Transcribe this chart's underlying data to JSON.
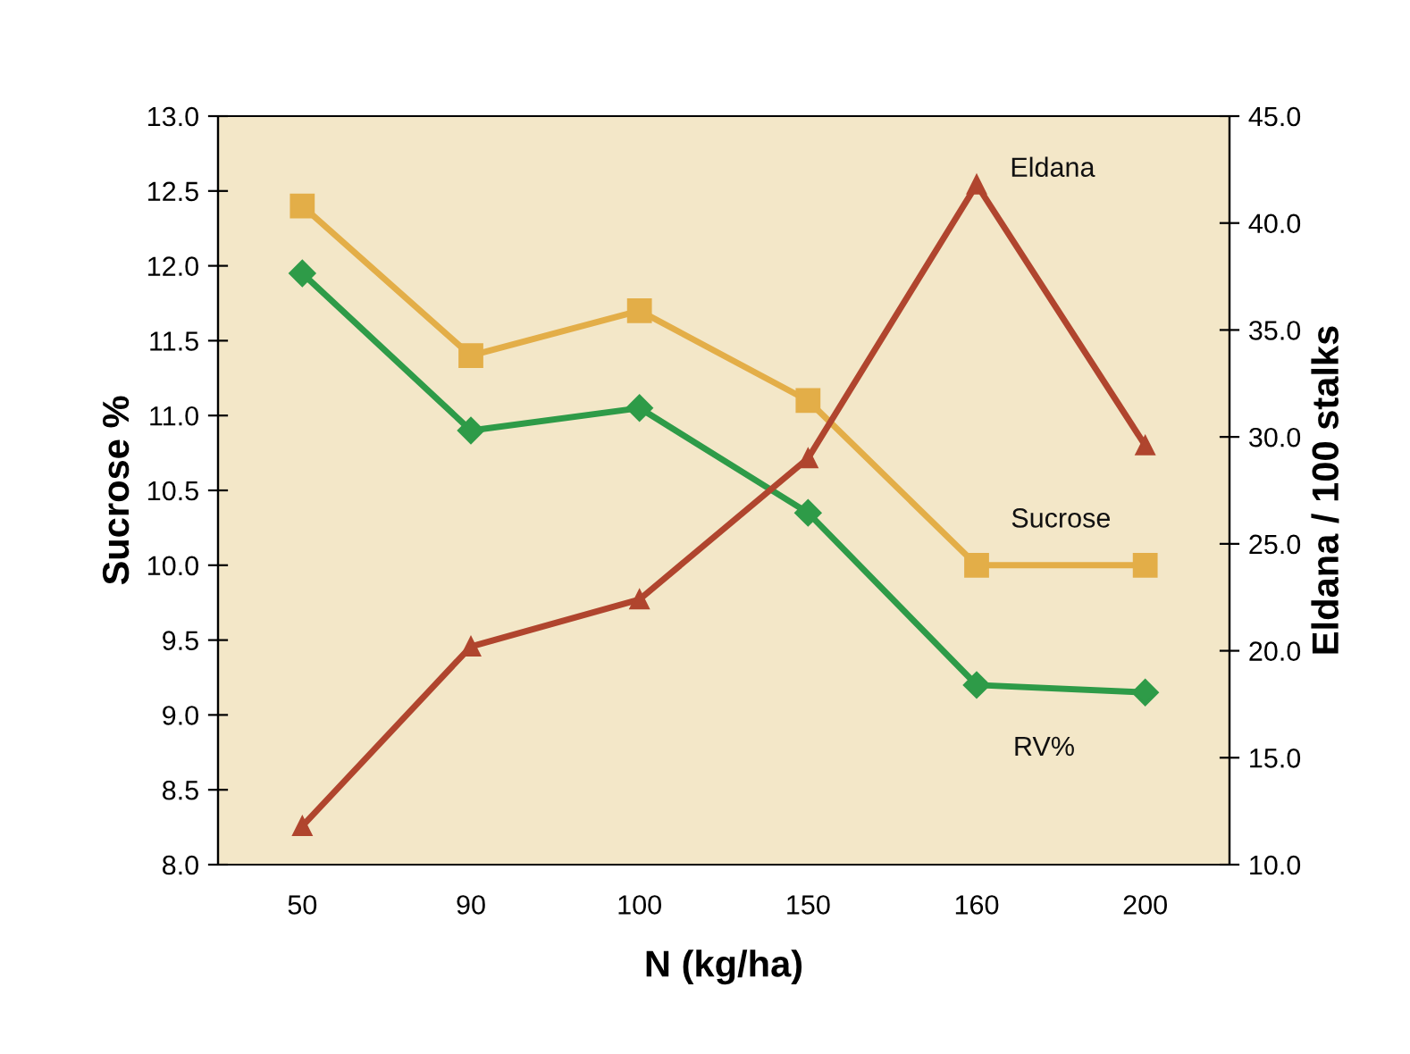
{
  "chart_data": {
    "type": "line",
    "xlabel": "N (kg/ha)",
    "ylabel": "Sucrose %",
    "y2label": "Eldana / 100 stalks",
    "categories": [
      "50",
      "90",
      "100",
      "150",
      "160",
      "200"
    ],
    "series": [
      {
        "name": "Sucrose",
        "color": "#e3ae48",
        "marker": "square",
        "values": [
          12.4,
          11.4,
          11.7,
          11.1,
          10.0,
          10.0
        ]
      },
      {
        "name": "RV%",
        "color": "#2e9b48",
        "marker": "diamond",
        "values": [
          11.95,
          10.9,
          11.05,
          10.35,
          9.2,
          9.15
        ]
      },
      {
        "name": "Eldana",
        "color": "#b0452e",
        "marker": "triangle",
        "axis": "y2",
        "values": [
          11.8,
          20.2,
          22.4,
          29.0,
          41.8,
          29.6
        ]
      }
    ],
    "ylim": [
      8,
      13
    ],
    "yticks": [
      {
        "value": 8,
        "label": "8.0"
      },
      8.5,
      {
        "value": 9,
        "label": "9.0"
      },
      9.5,
      {
        "value": 10,
        "label": "10.0"
      },
      10.5,
      {
        "value": 11,
        "label": "11.0"
      },
      11.5,
      {
        "value": 12,
        "label": "12.0"
      },
      12.5,
      {
        "value": 13,
        "label": "13.0"
      }
    ],
    "y2lim": [
      10,
      45
    ],
    "y2ticks": [
      {
        "value": 10,
        "label": "10.0"
      },
      {
        "value": 15,
        "label": "15.0"
      },
      {
        "value": 20,
        "label": "20.0"
      },
      {
        "value": 25,
        "label": "25.0"
      },
      {
        "value": 30,
        "label": "30.0"
      },
      {
        "value": 35,
        "label": "35.0"
      },
      {
        "value": 40,
        "label": "40.0"
      },
      {
        "value": 45,
        "label": "45.0"
      }
    ],
    "grid": false,
    "legend": false,
    "line_style": "solid"
  }
}
